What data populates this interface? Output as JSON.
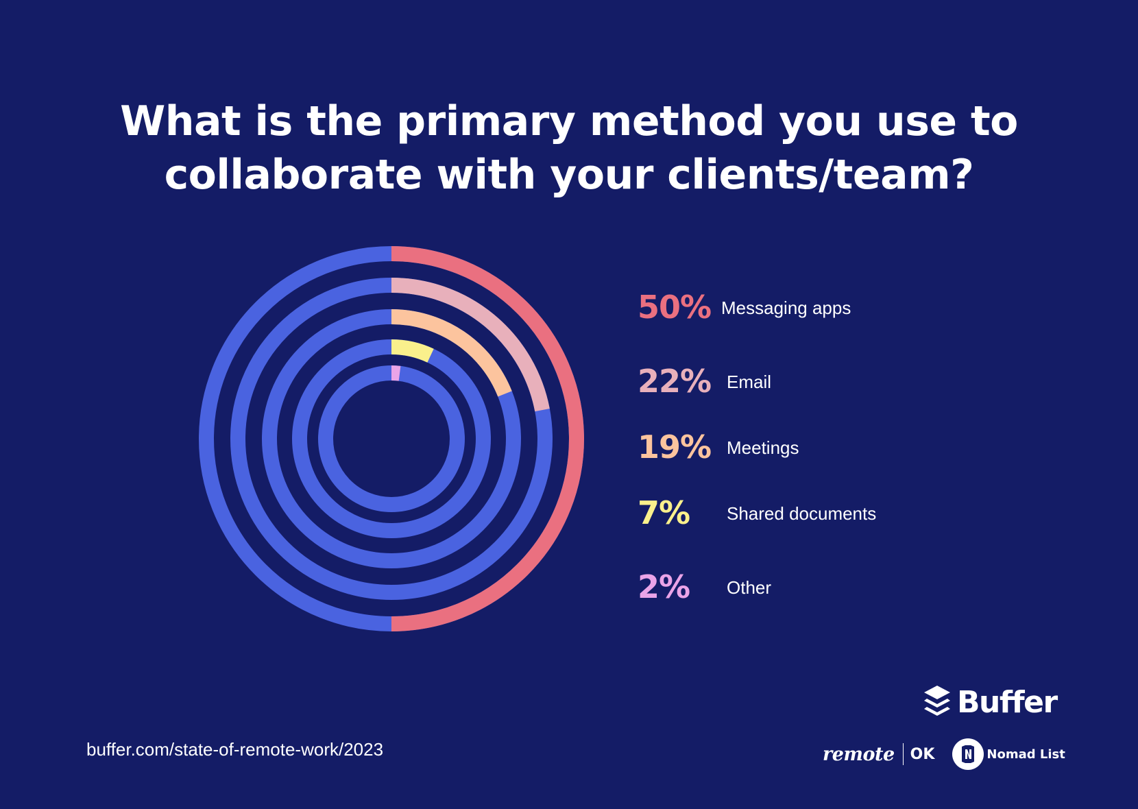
{
  "title_lines": [
    "What is the primary method you use to",
    "collaborate with your clients/team?"
  ],
  "colors": {
    "background": "#141c66",
    "ring_track": "#4a63e0",
    "text": "#ffffff"
  },
  "chart_data": {
    "type": "radial-bar",
    "title": "What is the primary method you use to collaborate with your clients/team?",
    "unit": "%",
    "max": 100,
    "series": [
      {
        "name": "Messaging apps",
        "label": "50%",
        "value": 50,
        "color": "#ea7080"
      },
      {
        "name": "Email",
        "label": "22%",
        "value": 22,
        "color": "#e8b0bb"
      },
      {
        "name": "Meetings",
        "label": "19%",
        "value": 19,
        "color": "#fcc49e"
      },
      {
        "name": "Shared documents",
        "label": "7%",
        "value": 7,
        "color": "#faf08c"
      },
      {
        "name": "Other",
        "label": "2%",
        "value": 2,
        "color": "#eaa4e8"
      }
    ]
  },
  "footer": {
    "source_url": "buffer.com/state-of-remote-work/2023",
    "brand_name": "Buffer",
    "partner_remote": "remote",
    "partner_ok": "OK",
    "partner_nomad": "Nomad List"
  }
}
